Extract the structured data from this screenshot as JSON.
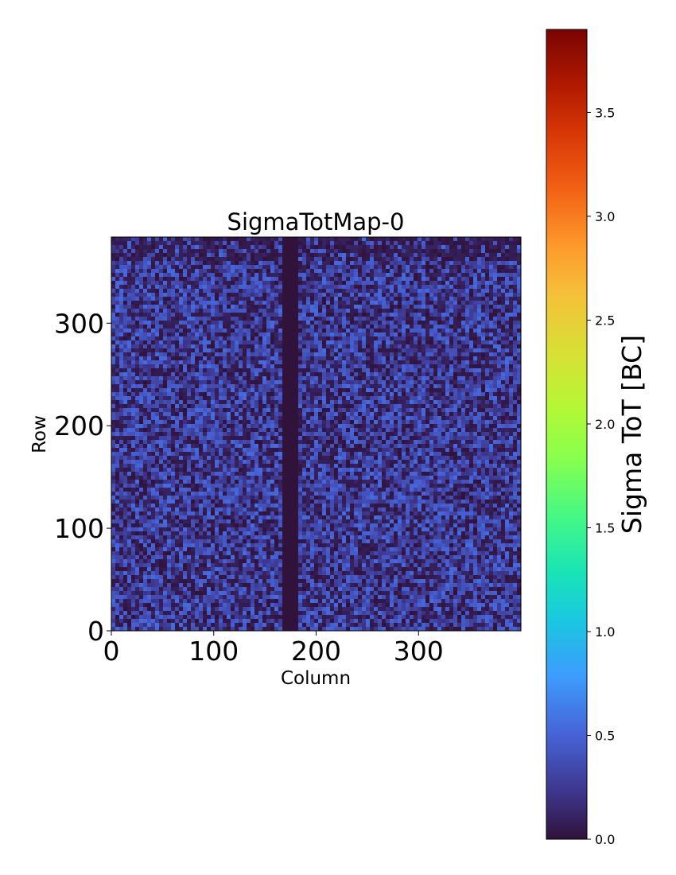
{
  "chart_data": {
    "type": "heatmap",
    "title": "SigmaTotMap-0",
    "xlabel": "Column",
    "ylabel": "Row",
    "xlim": [
      0,
      400
    ],
    "ylim": [
      0,
      384
    ],
    "xticks": [
      0,
      100,
      200,
      300
    ],
    "yticks": [
      0,
      100,
      200,
      300
    ],
    "xtick_labels": [
      "0",
      "100",
      "200",
      "300"
    ],
    "ytick_labels": [
      "0",
      "100",
      "200",
      "300"
    ],
    "colorbar": {
      "label": "Sigma ToT [BC]",
      "colormap": "turbo",
      "range": [
        0.0,
        3.9
      ],
      "ticks": [
        0.0,
        0.5,
        1.0,
        1.5,
        2.0,
        2.5,
        3.0,
        3.5
      ],
      "tick_labels": [
        "0.0",
        "0.5",
        "1.0",
        "1.5",
        "2.0",
        "2.5",
        "3.0",
        "3.5"
      ]
    },
    "value_summary": {
      "typical_min": 0.0,
      "typical_max": 0.55,
      "dead_column_range": [
        168,
        184
      ],
      "dead_column_value": 0.0
    }
  }
}
